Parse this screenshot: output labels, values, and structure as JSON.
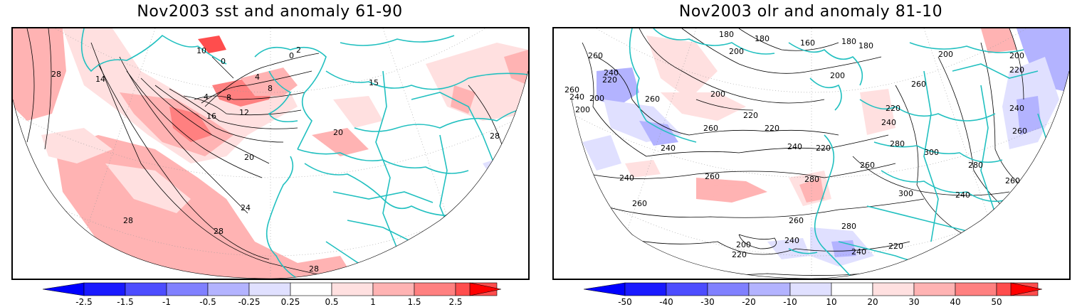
{
  "panels": {
    "left": {
      "title": "Nov2003 sst and anomaly 61-90",
      "contour_labels": [
        "28",
        "14",
        "10",
        "0",
        "2",
        "4",
        "4",
        "8",
        "8",
        "16",
        "12",
        "20",
        "20",
        "24",
        "28",
        "28",
        "28",
        "28",
        "0",
        "15"
      ],
      "colorbar_labels": [
        "-2.5",
        "-1.5",
        "-1",
        "-0.5",
        "-0.25",
        "0.25",
        "0.5",
        "1",
        "1.5",
        "2.5"
      ]
    },
    "right": {
      "title": "Nov2003 olr and anomaly 81-10",
      "contour_labels": [
        "260",
        "240",
        "220",
        "200",
        "240",
        "260",
        "200",
        "180",
        "180",
        "160",
        "180",
        "200",
        "200",
        "200",
        "180",
        "220",
        "220",
        "220",
        "260",
        "240",
        "240",
        "200",
        "260",
        "220",
        "240",
        "260",
        "280",
        "300",
        "280",
        "260",
        "300",
        "260",
        "280",
        "240",
        "260",
        "280",
        "200",
        "220",
        "240",
        "240",
        "220",
        "260",
        "260",
        "240",
        "200",
        "220",
        "240",
        "260"
      ],
      "colorbar_labels": [
        "-50",
        "-40",
        "-30",
        "-20",
        "-10",
        "10",
        "20",
        "30",
        "40",
        "50"
      ]
    }
  },
  "colors": {
    "coast": "#22c0c0",
    "neg": [
      "#1a1aff",
      "#4d4dff",
      "#8080ff",
      "#b3b3ff",
      "#e0e0ff"
    ],
    "pos": [
      "#ffe0e0",
      "#ffb3b3",
      "#ff8080",
      "#ff4d4d",
      "#ff1a1a"
    ]
  }
}
